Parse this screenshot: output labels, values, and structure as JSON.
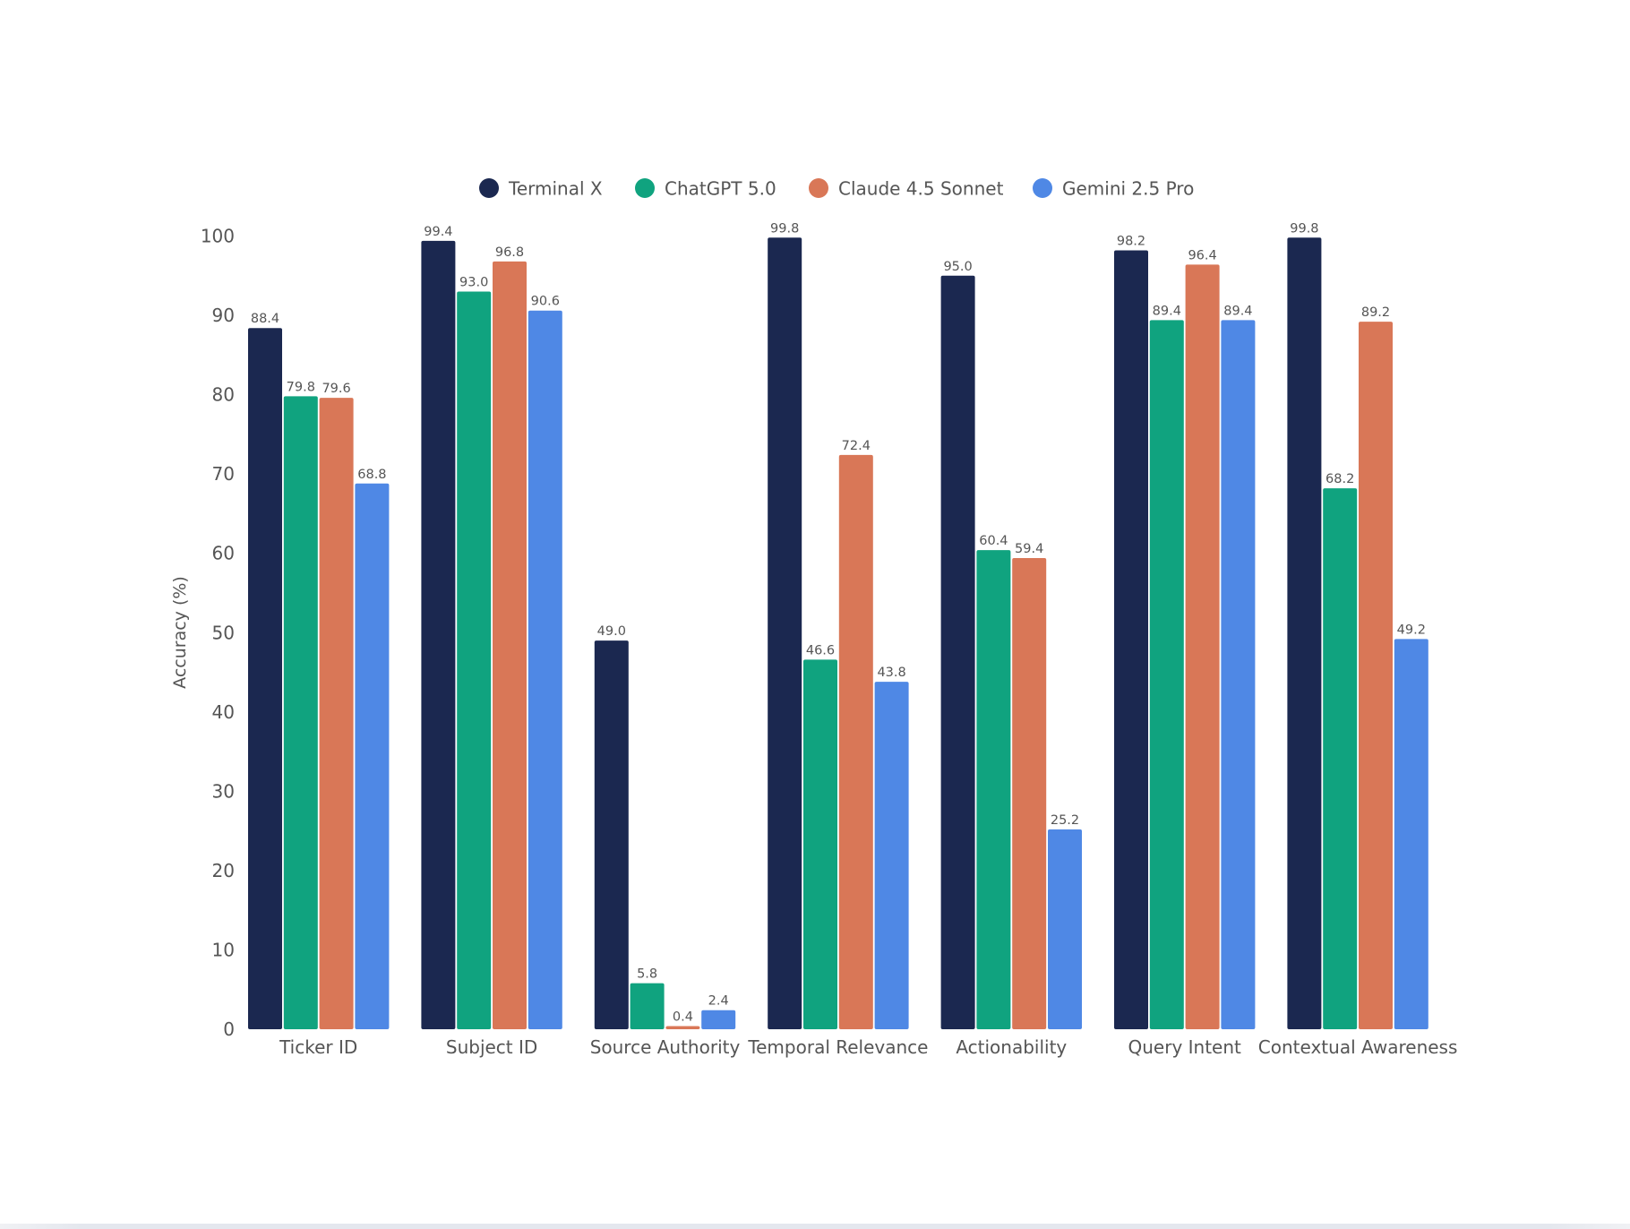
{
  "chart_data": {
    "type": "bar",
    "title": "",
    "xlabel": "",
    "ylabel": "Accuracy (%)",
    "ylim": [
      0,
      100
    ],
    "yticks": [
      0,
      10,
      20,
      30,
      40,
      50,
      60,
      70,
      80,
      90,
      100
    ],
    "grid": false,
    "legend_position": "top",
    "categories": [
      "Ticker ID",
      "Subject ID",
      "Source Authority",
      "Temporal Relevance",
      "Actionability",
      "Query Intent",
      "Contextual Awareness"
    ],
    "series": [
      {
        "name": "Terminal X",
        "color": "#1b2850",
        "values": [
          88.4,
          99.4,
          49.0,
          99.8,
          95.0,
          98.2,
          99.8
        ]
      },
      {
        "name": "ChatGPT 5.0",
        "color": "#10a37f",
        "values": [
          79.8,
          93.0,
          5.8,
          46.6,
          60.4,
          89.4,
          68.2
        ]
      },
      {
        "name": "Claude 4.5 Sonnet",
        "color": "#d97757",
        "values": [
          79.6,
          96.8,
          0.4,
          72.4,
          59.4,
          96.4,
          89.2
        ]
      },
      {
        "name": "Gemini 2.5 Pro",
        "color": "#4f88e5",
        "values": [
          68.8,
          90.6,
          2.4,
          43.8,
          25.2,
          89.4,
          49.2
        ]
      }
    ]
  }
}
